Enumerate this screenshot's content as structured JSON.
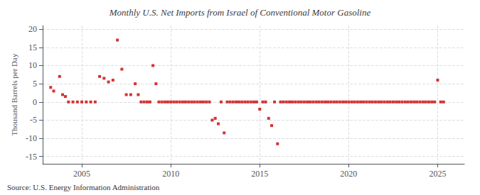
{
  "chart_data": {
    "type": "scatter",
    "title": "Monthly U.S. Net Imports from Israel of Conventional Motor Gasoline",
    "ylabel": "Thousand Barrels per Day",
    "annotation": "Source: U.S. Energy Information Administration",
    "ylim": [
      -17,
      21
    ],
    "yticks": [
      -15,
      -10,
      -5,
      0,
      5,
      10,
      15,
      20
    ],
    "xlim": [
      2002.8,
      2026.5
    ],
    "xticks": [
      2005,
      2010,
      2015,
      2020,
      2025
    ],
    "color": "#cc0000",
    "marker": "square",
    "grid": true,
    "x": [
      2003.25,
      2003.42,
      2003.75,
      2003.92,
      2004.08,
      2004.25,
      2004.5,
      2004.75,
      2005.0,
      2005.25,
      2005.5,
      2005.75,
      2006.0,
      2006.25,
      2006.5,
      2006.75,
      2007.0,
      2007.25,
      2007.5,
      2007.75,
      2008.0,
      2008.17,
      2008.33,
      2008.5,
      2008.67,
      2008.83,
      2009.0,
      2009.17,
      2009.33,
      2009.5,
      2009.67,
      2009.83,
      2010.0,
      2010.17,
      2010.33,
      2010.5,
      2010.67,
      2010.83,
      2011.0,
      2011.17,
      2011.33,
      2011.5,
      2011.67,
      2011.83,
      2012.0,
      2012.17,
      2012.33,
      2012.5,
      2012.67,
      2012.83,
      2013.0,
      2013.17,
      2013.33,
      2013.5,
      2013.67,
      2013.83,
      2014.0,
      2014.17,
      2014.33,
      2014.5,
      2014.67,
      2014.83,
      2015.0,
      2015.17,
      2015.33,
      2015.5,
      2015.67,
      2015.83,
      2016.0,
      2016.17,
      2016.33,
      2016.5,
      2016.67,
      2016.83,
      2017.0,
      2017.17,
      2017.33,
      2017.5,
      2017.67,
      2017.83,
      2018.0,
      2018.17,
      2018.33,
      2018.5,
      2018.67,
      2018.83,
      2019.0,
      2019.17,
      2019.33,
      2019.5,
      2019.67,
      2019.83,
      2020.0,
      2020.17,
      2020.33,
      2020.5,
      2020.67,
      2020.83,
      2021.0,
      2021.17,
      2021.33,
      2021.5,
      2021.67,
      2021.83,
      2022.0,
      2022.17,
      2022.33,
      2022.5,
      2022.67,
      2022.83,
      2023.0,
      2023.17,
      2023.33,
      2023.5,
      2023.67,
      2023.83,
      2024.0,
      2024.17,
      2024.33,
      2024.5,
      2024.67,
      2024.83,
      2025.0,
      2025.17,
      2025.33
    ],
    "values": [
      4.0,
      3.0,
      7.0,
      2.0,
      1.5,
      0.0,
      0.0,
      0.0,
      0.0,
      0.0,
      0.0,
      0.0,
      7.0,
      6.5,
      5.5,
      6.0,
      17.0,
      9.0,
      2.0,
      2.0,
      5.0,
      2.0,
      0.0,
      0.0,
      0.0,
      0.0,
      10.0,
      5.0,
      0.0,
      0.0,
      0.0,
      0.0,
      0.0,
      0.0,
      0.0,
      0.0,
      0.0,
      0.0,
      0.0,
      0.0,
      0.0,
      0.0,
      0.0,
      0.0,
      0.0,
      0.0,
      -5.0,
      -4.5,
      -6.0,
      0.0,
      -8.5,
      0.0,
      0.0,
      0.0,
      0.0,
      0.0,
      0.0,
      0.0,
      0.0,
      0.0,
      0.0,
      0.0,
      -2.0,
      0.0,
      0.0,
      -4.5,
      -6.5,
      0.0,
      -11.5,
      0.0,
      0.0,
      0.0,
      0.0,
      0.0,
      0.0,
      0.0,
      0.0,
      0.0,
      0.0,
      0.0,
      0.0,
      0.0,
      0.0,
      0.0,
      0.0,
      0.0,
      0.0,
      0.0,
      0.0,
      0.0,
      0.0,
      0.0,
      0.0,
      0.0,
      0.0,
      0.0,
      0.0,
      0.0,
      0.0,
      0.0,
      0.0,
      0.0,
      0.0,
      0.0,
      0.0,
      0.0,
      0.0,
      0.0,
      0.0,
      0.0,
      0.0,
      0.0,
      0.0,
      0.0,
      0.0,
      0.0,
      0.0,
      0.0,
      0.0,
      0.0,
      0.0,
      0.0,
      6.0,
      0.0,
      0.0
    ]
  }
}
